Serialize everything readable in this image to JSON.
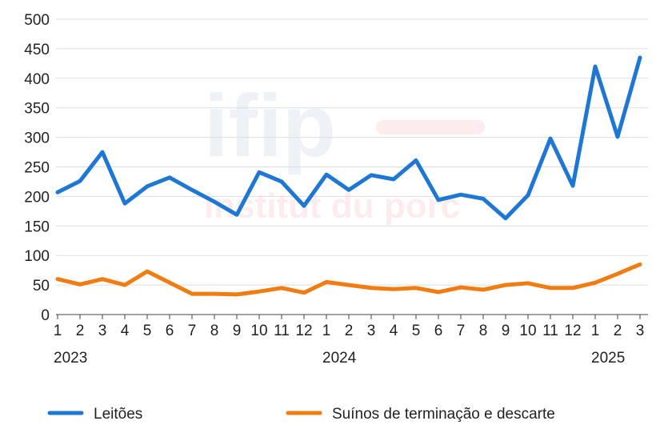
{
  "watermark": {
    "line1": "ifip",
    "line2": "institut du porc"
  },
  "colors": {
    "leitoes": "#1f77d4",
    "suinos": "#f07c12",
    "grid": "#dddddd"
  },
  "chart_data": {
    "type": "line",
    "title": "",
    "xlabel": "",
    "ylabel": "",
    "ylim": [
      0,
      500
    ],
    "yticks": [
      "0",
      "50",
      "100",
      "150",
      "200",
      "250",
      "300",
      "350",
      "400",
      "450",
      "500"
    ],
    "grid": true,
    "legend_placement": "bottom",
    "x": [
      "1",
      "2",
      "3",
      "4",
      "5",
      "6",
      "7",
      "8",
      "9",
      "10",
      "11",
      "12",
      "1",
      "2",
      "3",
      "4",
      "5",
      "6",
      "7",
      "8",
      "9",
      "10",
      "11",
      "12",
      "1",
      "2",
      "3"
    ],
    "years": [
      {
        "label": "2023",
        "index": 0
      },
      {
        "label": "2024",
        "index": 12
      },
      {
        "label": "2025",
        "index": 24
      }
    ],
    "series": [
      {
        "name": "Leitões",
        "color": "#1f77d4",
        "values": [
          207,
          226,
          275,
          188,
          217,
          232,
          211,
          191,
          169,
          241,
          225,
          184,
          237,
          211,
          236,
          229,
          261,
          194,
          203,
          196,
          163,
          202,
          298,
          218,
          420,
          301,
          435
        ]
      },
      {
        "name": "Suínos de terminação e descarte",
        "color": "#f07c12",
        "values": [
          60,
          51,
          60,
          50,
          73,
          54,
          35,
          35,
          34,
          39,
          45,
          37,
          55,
          50,
          45,
          43,
          45,
          38,
          46,
          42,
          50,
          53,
          45,
          45,
          54,
          69,
          85
        ]
      }
    ]
  }
}
